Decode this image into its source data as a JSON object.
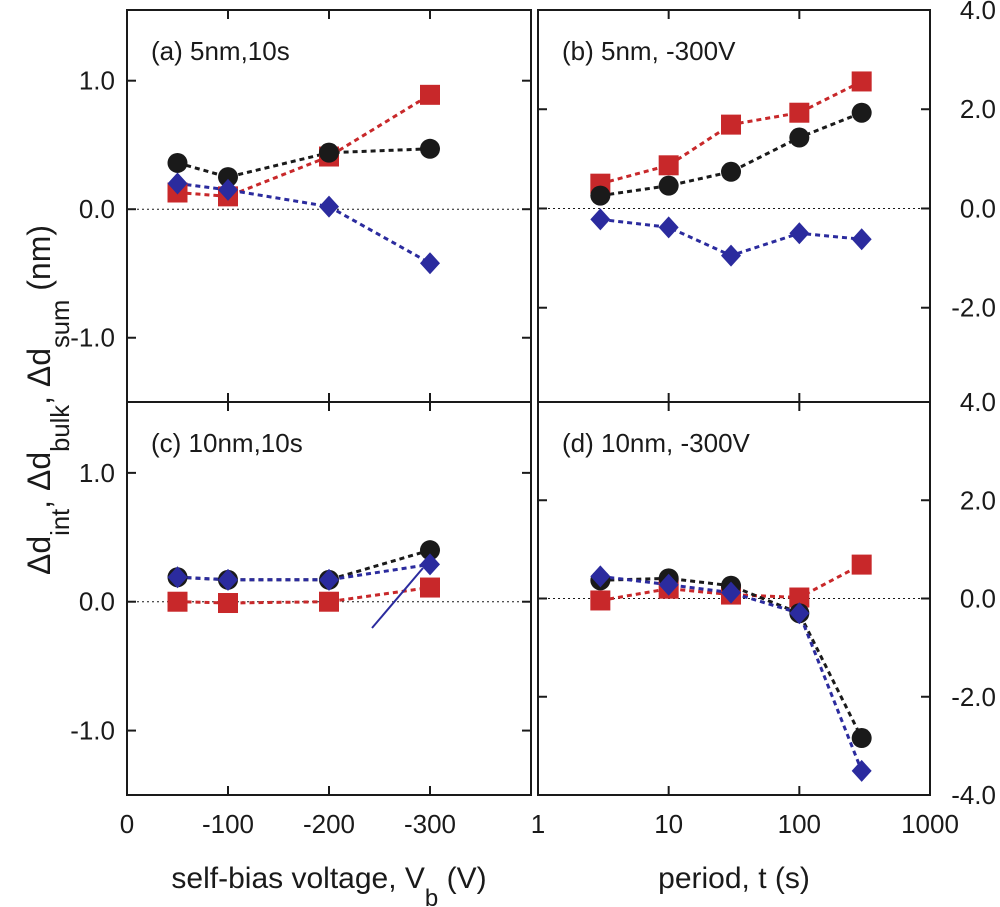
{
  "chart_data": [
    {
      "type": "line",
      "panel_label": "(a) 5nm,10s",
      "x": [
        -50,
        -100,
        -200,
        -300
      ],
      "xlim": [
        0,
        -400
      ],
      "xticks": [
        0,
        -100,
        -200,
        -300
      ],
      "ylim": [
        -1.5,
        1.55
      ],
      "yticks": [
        {
          "value": 1,
          "label": "1.0"
        },
        {
          "value": 0,
          "label": "0.0"
        },
        {
          "value": -1,
          "label": "-1.0"
        }
      ],
      "ylabel": [
        "Δd",
        "int",
        ", Δd",
        "bulk",
        ", Δd",
        "sum",
        " (nm)"
      ],
      "series": [
        {
          "name": "Δd",
          "name_sub": "int",
          "color": "#c8282a",
          "marker": "square",
          "values": [
            0.13,
            0.1,
            0.41,
            0.89
          ]
        },
        {
          "name": "Δd",
          "name_sub": "sum",
          "color": "#1a1a1a",
          "marker": "circle",
          "values": [
            0.36,
            0.25,
            0.44,
            0.47
          ]
        },
        {
          "name": "Δd",
          "name_sub": "bulk",
          "color": "#2b2b9e",
          "marker": "diamond",
          "values": [
            0.2,
            0.15,
            0.02,
            -0.42
          ]
        }
      ]
    },
    {
      "type": "line",
      "panel_label": "(b) 5nm, -300V",
      "xscale": "log",
      "x": [
        3,
        10,
        30,
        100,
        300
      ],
      "xlim": [
        1,
        1000
      ],
      "xticks": [
        1,
        10,
        100,
        1000
      ],
      "ylim": [
        -3.9,
        4.0
      ],
      "yticks": [
        {
          "value": 4,
          "label": "4.0"
        },
        {
          "value": 2,
          "label": "2.0"
        },
        {
          "value": 0,
          "label": "0.0"
        },
        {
          "value": -2,
          "label": "-2.0"
        }
      ],
      "series": [
        {
          "name": "Δd",
          "name_sub": "int",
          "color": "#c8282a",
          "marker": "square",
          "values": [
            0.5,
            0.87,
            1.69,
            1.93,
            2.56
          ]
        },
        {
          "name": "Δd",
          "name_sub": "sum",
          "color": "#1a1a1a",
          "marker": "circle",
          "values": [
            0.26,
            0.46,
            0.74,
            1.43,
            1.93
          ]
        },
        {
          "name": "Δd",
          "name_sub": "bulk",
          "color": "#2b2b9e",
          "marker": "diamond",
          "values": [
            -0.22,
            -0.38,
            -0.95,
            -0.5,
            -0.62
          ]
        }
      ]
    },
    {
      "type": "line",
      "panel_label": "(c) 10nm,10s",
      "x": [
        -50,
        -100,
        -200,
        -300
      ],
      "xlim": [
        0,
        -400
      ],
      "xticks": [
        0,
        -100,
        -200,
        -300
      ],
      "xlabel": [
        "self-bias voltage, V",
        "b",
        " (V)"
      ],
      "ylim": [
        -1.5,
        1.55
      ],
      "yticks": [
        {
          "value": 1,
          "label": "1.0"
        },
        {
          "value": 0,
          "label": "0.0"
        },
        {
          "value": -1,
          "label": "-1.0"
        }
      ],
      "series": [
        {
          "name": "Δd",
          "name_sub": "int",
          "color": "#c8282a",
          "marker": "square",
          "values": [
            0.0,
            -0.01,
            0.0,
            0.11
          ]
        },
        {
          "name": "Δd",
          "name_sub": "sum",
          "color": "#1a1a1a",
          "marker": "circle",
          "values": [
            0.19,
            0.17,
            0.17,
            0.4
          ]
        },
        {
          "name": "Δd",
          "name_sub": "bulk",
          "color": "#2b2b9e",
          "marker": "diamond",
          "values": [
            0.19,
            0.17,
            0.17,
            0.29
          ]
        }
      ]
    },
    {
      "type": "line",
      "panel_label": "(d) 10nm, -300V",
      "xscale": "log",
      "x": [
        3,
        10,
        30,
        100,
        300
      ],
      "xlim": [
        1,
        1000
      ],
      "xticks": [
        1,
        10,
        100,
        1000
      ],
      "xlabel": [
        "period, t (s)"
      ],
      "ylim": [
        -4,
        4
      ],
      "yticks": [
        {
          "value": 4,
          "label": "4.0"
        },
        {
          "value": 2,
          "label": "2.0"
        },
        {
          "value": 0,
          "label": "0.0"
        },
        {
          "value": -2,
          "label": "-2.0"
        },
        {
          "value": -4,
          "label": "-4.0"
        }
      ],
      "series": [
        {
          "name": "Δd",
          "name_sub": "int",
          "color": "#c8282a",
          "marker": "square",
          "values": [
            -0.04,
            0.2,
            0.08,
            0.02,
            0.69
          ]
        },
        {
          "name": "Δd",
          "name_sub": "sum",
          "color": "#1a1a1a",
          "marker": "circle",
          "values": [
            0.37,
            0.41,
            0.26,
            -0.3,
            -2.84
          ]
        },
        {
          "name": "Δd",
          "name_sub": "bulk",
          "color": "#2b2b9e",
          "marker": "diamond",
          "values": [
            0.45,
            0.28,
            0.12,
            -0.3,
            -3.51
          ]
        }
      ]
    }
  ]
}
